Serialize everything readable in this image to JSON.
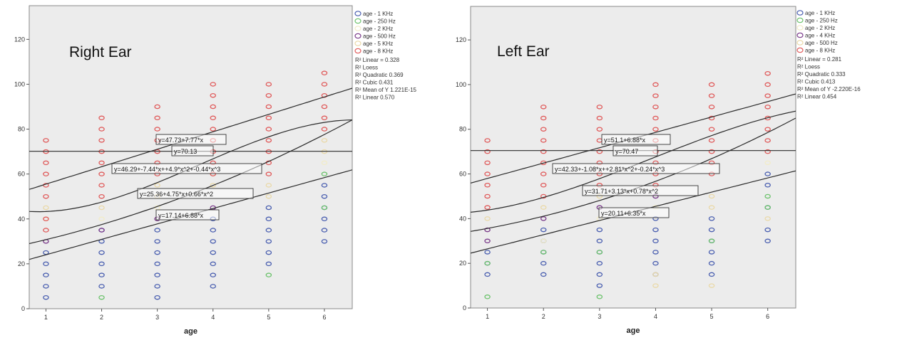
{
  "chart_data": [
    {
      "type": "scatter",
      "title": "Right Ear",
      "xlabel": "age",
      "ylabel": "",
      "xlim": [
        0.7,
        6.5
      ],
      "ylim": [
        0,
        135
      ],
      "x_ticks": [
        1,
        2,
        3,
        4,
        5,
        6
      ],
      "y_ticks": [
        0,
        20,
        40,
        60,
        80,
        100,
        120
      ],
      "grid": false,
      "legend_position": "right",
      "legend": [
        "age - 1 KHz",
        "age - 250 Hz",
        "age - 2 KHz",
        "age - 500 Hz",
        "age - 5 KHz",
        "age - 8 KHz"
      ],
      "fit_legend": [
        "R² Linear = 0.328",
        "R² Loess",
        "R² Quadratic 0.369",
        "R² Cubic 0.431",
        "R² Mean of Y 1.221E-15",
        "R² Linear 0.570"
      ],
      "colors": {
        "1k": "#4a5fb0",
        "250": "#6cc26c",
        "2k": "#f2ecc8",
        "500": "#7a3a8a",
        "5k": "#ead9a8",
        "8k": "#e05a5a"
      },
      "series": [
        {
          "name": "age - 1 KHz",
          "color": "#4a5fb0",
          "points": [
            [
              1,
              5
            ],
            [
              1,
              10
            ],
            [
              1,
              15
            ],
            [
              1,
              20
            ],
            [
              1,
              25
            ],
            [
              2,
              10
            ],
            [
              2,
              15
            ],
            [
              2,
              20
            ],
            [
              2,
              25
            ],
            [
              2,
              30
            ],
            [
              2,
              35
            ],
            [
              3,
              5
            ],
            [
              3,
              10
            ],
            [
              3,
              15
            ],
            [
              3,
              20
            ],
            [
              3,
              25
            ],
            [
              3,
              30
            ],
            [
              3,
              35
            ],
            [
              4,
              10
            ],
            [
              4,
              15
            ],
            [
              4,
              20
            ],
            [
              4,
              25
            ],
            [
              4,
              30
            ],
            [
              4,
              35
            ],
            [
              4,
              40
            ],
            [
              5,
              20
            ],
            [
              5,
              25
            ],
            [
              5,
              30
            ],
            [
              5,
              35
            ],
            [
              5,
              40
            ],
            [
              5,
              45
            ],
            [
              6,
              30
            ],
            [
              6,
              35
            ],
            [
              6,
              40
            ],
            [
              6,
              45
            ],
            [
              6,
              50
            ],
            [
              6,
              55
            ]
          ]
        },
        {
          "name": "age - 250 Hz",
          "color": "#6cc26c",
          "points": [
            [
              2,
              5
            ],
            [
              5,
              15
            ],
            [
              6,
              45
            ],
            [
              6,
              60
            ]
          ]
        },
        {
          "name": "age - 2 KHz",
          "color": "#f2ecc8",
          "points": [
            [
              2,
              40
            ],
            [
              3,
              45
            ],
            [
              6,
              65
            ]
          ]
        },
        {
          "name": "age - 500 Hz",
          "color": "#7a3a8a",
          "points": [
            [
              1,
              30
            ],
            [
              2,
              35
            ],
            [
              3,
              40
            ],
            [
              4,
              45
            ]
          ]
        },
        {
          "name": "age - 5 KHz",
          "color": "#ead9a8",
          "points": [
            [
              1,
              40
            ],
            [
              1,
              45
            ],
            [
              2,
              45
            ],
            [
              3,
              50
            ],
            [
              3,
              55
            ],
            [
              4,
              55
            ],
            [
              4,
              60
            ],
            [
              5,
              50
            ],
            [
              5,
              55
            ],
            [
              6,
              70
            ],
            [
              6,
              75
            ]
          ]
        },
        {
          "name": "age - 8 KHz",
          "color": "#e05a5a",
          "points": [
            [
              1,
              35
            ],
            [
              1,
              40
            ],
            [
              1,
              50
            ],
            [
              1,
              55
            ],
            [
              1,
              60
            ],
            [
              1,
              65
            ],
            [
              1,
              70
            ],
            [
              1,
              75
            ],
            [
              2,
              50
            ],
            [
              2,
              55
            ],
            [
              2,
              60
            ],
            [
              2,
              65
            ],
            [
              2,
              70
            ],
            [
              2,
              75
            ],
            [
              2,
              80
            ],
            [
              2,
              85
            ],
            [
              3,
              60
            ],
            [
              3,
              65
            ],
            [
              3,
              70
            ],
            [
              3,
              75
            ],
            [
              3,
              80
            ],
            [
              3,
              85
            ],
            [
              3,
              90
            ],
            [
              4,
              60
            ],
            [
              4,
              65
            ],
            [
              4,
              70
            ],
            [
              4,
              75
            ],
            [
              4,
              80
            ],
            [
              4,
              85
            ],
            [
              4,
              90
            ],
            [
              4,
              95
            ],
            [
              4,
              100
            ],
            [
              5,
              60
            ],
            [
              5,
              65
            ],
            [
              5,
              70
            ],
            [
              5,
              75
            ],
            [
              5,
              80
            ],
            [
              5,
              85
            ],
            [
              5,
              90
            ],
            [
              5,
              95
            ],
            [
              5,
              100
            ],
            [
              6,
              80
            ],
            [
              6,
              85
            ],
            [
              6,
              90
            ],
            [
              6,
              95
            ],
            [
              6,
              100
            ],
            [
              6,
              105
            ]
          ]
        }
      ],
      "fit_lines": [
        {
          "label": "y=47.73+7.77*x",
          "kind": "linear",
          "coef": [
            47.73,
            7.77
          ]
        },
        {
          "label": "y=70.13",
          "kind": "mean",
          "coef": [
            70.13
          ]
        },
        {
          "label": "y=46.29+-7.44*x++4.9*x^2+-0.44*x^3",
          "kind": "cubic",
          "coef": [
            46.29,
            -7.44,
            4.9,
            -0.44
          ]
        },
        {
          "label": "y=25.36+4.75*x+0.66*x^2",
          "kind": "quadratic",
          "coef": [
            25.36,
            4.75,
            0.66
          ]
        },
        {
          "label": "y=17.14+6.88*x",
          "kind": "linear",
          "coef": [
            17.14,
            6.88
          ]
        }
      ]
    },
    {
      "type": "scatter",
      "title": "Left Ear",
      "xlabel": "age",
      "ylabel": "",
      "xlim": [
        0.7,
        6.5
      ],
      "ylim": [
        0,
        135
      ],
      "x_ticks": [
        1,
        2,
        3,
        4,
        5,
        6
      ],
      "y_ticks": [
        0,
        20,
        40,
        60,
        80,
        100,
        120
      ],
      "grid": false,
      "legend_position": "right",
      "legend": [
        "age - 1 KHz",
        "age - 250 Hz",
        "age - 2 KHz",
        "age - 4 KHz",
        "age - 500 Hz",
        "age - 8 KHz"
      ],
      "fit_legend": [
        "R² Linear = 0.281",
        "R² Loess",
        "R² Quadratic 0.333",
        "R² Cubic 0.413",
        "R² Mean of Y -2.220E-16",
        "R² Linear 0.454"
      ],
      "colors": {
        "1k": "#4a5fb0",
        "250": "#6cc26c",
        "2k": "#f2ecc8",
        "4k": "#7a3a8a",
        "500": "#ead9a8",
        "8k": "#e05a5a"
      },
      "series": [
        {
          "name": "age - 1 KHz",
          "color": "#4a5fb0",
          "points": [
            [
              1,
              15
            ],
            [
              1,
              20
            ],
            [
              1,
              25
            ],
            [
              2,
              15
            ],
            [
              2,
              20
            ],
            [
              2,
              25
            ],
            [
              2,
              30
            ],
            [
              2,
              35
            ],
            [
              3,
              10
            ],
            [
              3,
              15
            ],
            [
              3,
              20
            ],
            [
              3,
              25
            ],
            [
              3,
              30
            ],
            [
              3,
              35
            ],
            [
              4,
              15
            ],
            [
              4,
              20
            ],
            [
              4,
              25
            ],
            [
              4,
              30
            ],
            [
              4,
              35
            ],
            [
              4,
              40
            ],
            [
              5,
              15
            ],
            [
              5,
              20
            ],
            [
              5,
              25
            ],
            [
              5,
              30
            ],
            [
              5,
              35
            ],
            [
              5,
              40
            ],
            [
              6,
              30
            ],
            [
              6,
              35
            ],
            [
              6,
              45
            ],
            [
              6,
              55
            ],
            [
              6,
              60
            ]
          ]
        },
        {
          "name": "age - 250 Hz",
          "color": "#6cc26c",
          "points": [
            [
              1,
              5
            ],
            [
              1,
              20
            ],
            [
              2,
              25
            ],
            [
              3,
              5
            ],
            [
              3,
              25
            ],
            [
              5,
              30
            ],
            [
              6,
              50
            ],
            [
              6,
              45
            ]
          ]
        },
        {
          "name": "age - 2 KHz",
          "color": "#f2ecc8",
          "points": [
            [
              2,
              30
            ],
            [
              3,
              40
            ],
            [
              4,
              45
            ],
            [
              6,
              65
            ]
          ]
        },
        {
          "name": "age - 4 KHz",
          "color": "#7a3a8a",
          "points": [
            [
              1,
              30
            ],
            [
              1,
              35
            ],
            [
              2,
              40
            ],
            [
              3,
              45
            ],
            [
              4,
              50
            ]
          ]
        },
        {
          "name": "age - 500 Hz",
          "color": "#ead9a8",
          "points": [
            [
              1,
              40
            ],
            [
              2,
              45
            ],
            [
              3,
              50
            ],
            [
              4,
              10
            ],
            [
              4,
              15
            ],
            [
              5,
              10
            ],
            [
              5,
              45
            ],
            [
              5,
              50
            ],
            [
              6,
              40
            ]
          ]
        },
        {
          "name": "age - 8 KHz",
          "color": "#e05a5a",
          "points": [
            [
              1,
              45
            ],
            [
              1,
              50
            ],
            [
              1,
              55
            ],
            [
              1,
              60
            ],
            [
              1,
              65
            ],
            [
              1,
              70
            ],
            [
              1,
              75
            ],
            [
              2,
              50
            ],
            [
              2,
              55
            ],
            [
              2,
              60
            ],
            [
              2,
              65
            ],
            [
              2,
              70
            ],
            [
              2,
              75
            ],
            [
              2,
              80
            ],
            [
              2,
              85
            ],
            [
              2,
              90
            ],
            [
              3,
              55
            ],
            [
              3,
              60
            ],
            [
              3,
              65
            ],
            [
              3,
              70
            ],
            [
              3,
              75
            ],
            [
              3,
              80
            ],
            [
              3,
              85
            ],
            [
              3,
              90
            ],
            [
              4,
              55
            ],
            [
              4,
              60
            ],
            [
              4,
              65
            ],
            [
              4,
              70
            ],
            [
              4,
              75
            ],
            [
              4,
              80
            ],
            [
              4,
              85
            ],
            [
              4,
              90
            ],
            [
              4,
              95
            ],
            [
              4,
              100
            ],
            [
              5,
              60
            ],
            [
              5,
              65
            ],
            [
              5,
              70
            ],
            [
              5,
              75
            ],
            [
              5,
              80
            ],
            [
              5,
              85
            ],
            [
              5,
              90
            ],
            [
              5,
              95
            ],
            [
              5,
              100
            ],
            [
              6,
              70
            ],
            [
              6,
              75
            ],
            [
              6,
              80
            ],
            [
              6,
              85
            ],
            [
              6,
              90
            ],
            [
              6,
              95
            ],
            [
              6,
              100
            ],
            [
              6,
              105
            ]
          ]
        }
      ],
      "fit_lines": [
        {
          "label": "y=51.1+6.88*x",
          "kind": "linear",
          "coef": [
            51.1,
            6.88
          ]
        },
        {
          "label": "y=70.47",
          "kind": "mean",
          "coef": [
            70.47
          ]
        },
        {
          "label": "y=42.33+-1.08*x++2.81*x^2+-0.24*x^3",
          "kind": "cubic",
          "coef": [
            42.33,
            -1.08,
            2.81,
            -0.24
          ]
        },
        {
          "label": "y=31.71+3.13*x+0.78*x^2",
          "kind": "quadratic",
          "coef": [
            31.71,
            3.13,
            0.78
          ]
        },
        {
          "label": "y=20.11+6.35*x",
          "kind": "linear",
          "coef": [
            20.11,
            6.35
          ]
        }
      ]
    }
  ]
}
